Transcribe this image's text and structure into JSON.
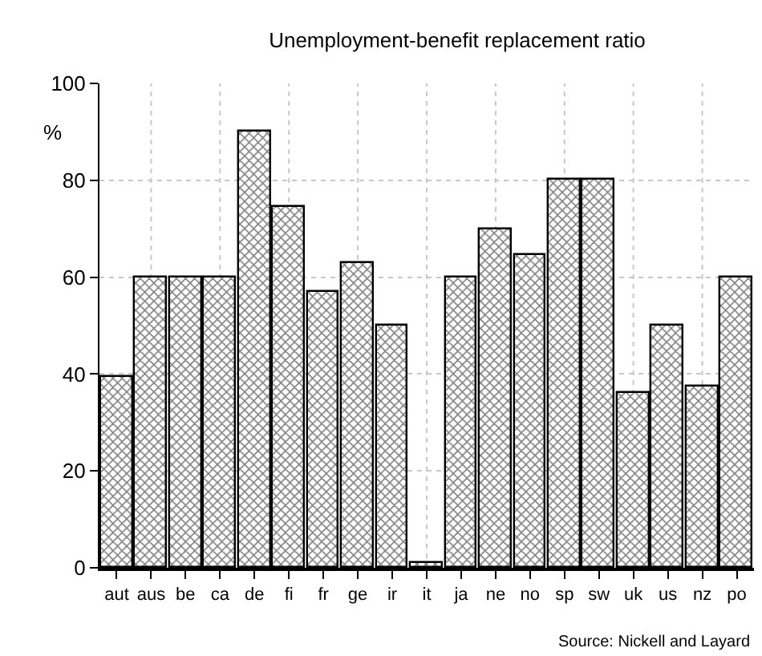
{
  "chart_data": {
    "type": "bar",
    "title": "Unemployment-benefit replacement ratio",
    "ylabel": "%",
    "categories": [
      "aut",
      "aus",
      "be",
      "ca",
      "de",
      "fi",
      "fr",
      "ge",
      "ir",
      "it",
      "ja",
      "ne",
      "no",
      "sp",
      "sw",
      "uk",
      "us",
      "nz",
      "po"
    ],
    "values": [
      39.5,
      60,
      60,
      60,
      90,
      74.5,
      57,
      63,
      50,
      1,
      60,
      70,
      64.5,
      80,
      80,
      36,
      50,
      37.5,
      60
    ],
    "color": "#000000",
    "ylim": [
      0,
      100
    ],
    "yticks": [
      0,
      20,
      40,
      60,
      80,
      100
    ],
    "grid": true,
    "legend": false,
    "annotations": [
      "Source: Nickell and Layard"
    ]
  }
}
